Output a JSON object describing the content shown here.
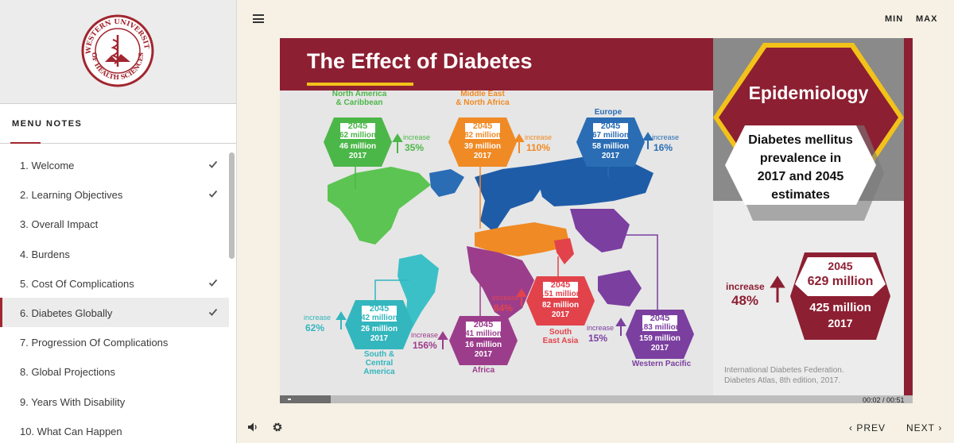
{
  "sidebar": {
    "logo": {
      "top_text": "WESTERN UNIVERSITY",
      "bottom_text": "OF HEALTH SCIENCES",
      "motto": "Educare · Sanare · Conservare"
    },
    "tabs": {
      "menu": "MENU",
      "notes": "NOTES"
    },
    "items": [
      {
        "label": "1. Welcome",
        "done": true
      },
      {
        "label": "2. Learning Objectives",
        "done": true
      },
      {
        "label": "3. Overall Impact",
        "done": false
      },
      {
        "label": "4. Burdens",
        "done": false
      },
      {
        "label": "5. Cost Of Complications",
        "done": true
      },
      {
        "label": "6. Diabetes Globally",
        "done": true,
        "active": true
      },
      {
        "label": "7. Progression Of Complications",
        "done": false
      },
      {
        "label": "8. Global Projections",
        "done": false
      },
      {
        "label": "9. Years With Disability",
        "done": false
      },
      {
        "label": "10. What Can Happen",
        "done": false
      }
    ]
  },
  "topbar": {
    "min": "MIN",
    "max": "MAX"
  },
  "slide": {
    "title": "The Effect of Diabetes",
    "epidemiology": {
      "heading": "Epidemiology",
      "line1": "Diabetes mellitus",
      "line2": "prevalence in",
      "line3": "2017 and 2045",
      "line4": "estimates"
    },
    "global": {
      "increase_word": "increase",
      "pct": "48%",
      "y2045": "2045",
      "v2045": "629 million",
      "v2017": "425 million",
      "y2017": "2017"
    },
    "regions": [
      {
        "name1": "North America",
        "name2": "& Caribbean",
        "name3": "",
        "y2045": "2045",
        "v2045": "62 million",
        "v2017": "46 million",
        "y2017": "2017",
        "inc": "increase",
        "pct": "35%",
        "color": "#4cb749"
      },
      {
        "name1": "Middle East",
        "name2": "& North Africa",
        "name3": "",
        "y2045": "2045",
        "v2045": "82 million",
        "v2017": "39 million",
        "y2017": "2017",
        "inc": "increase",
        "pct": "110%",
        "color": "#f08a24"
      },
      {
        "name1": "Europe",
        "name2": "",
        "name3": "",
        "y2045": "2045",
        "v2045": "67 million",
        "v2017": "58 million",
        "y2017": "2017",
        "inc": "increase",
        "pct": "16%",
        "color": "#2a6db5"
      },
      {
        "name1": "South &",
        "name2": "Central",
        "name3": "America",
        "y2045": "2045",
        "v2045": "42 million",
        "v2017": "26 million",
        "y2017": "2017",
        "inc": "increase",
        "pct": "62%",
        "color": "#33b6bd"
      },
      {
        "name1": "Africa",
        "name2": "",
        "name3": "",
        "y2045": "2045",
        "v2045": "41 million",
        "v2017": "16 million",
        "y2017": "2017",
        "inc": "increase",
        "pct": "156%",
        "color": "#9c3d8c"
      },
      {
        "name1": "South",
        "name2": "East Asia",
        "name3": "",
        "y2045": "2045",
        "v2045": "151 million",
        "v2017": "82 million",
        "y2017": "2017",
        "inc": "increase",
        "pct": "84%",
        "color": "#e2434b"
      },
      {
        "name1": "Western Pacific",
        "name2": "",
        "name3": "",
        "y2045": "2045",
        "v2045": "183 million",
        "v2017": "159 million",
        "y2017": "2017",
        "inc": "increase",
        "pct": "15%",
        "color": "#7b3fa0"
      }
    ],
    "credit_line1": "International Diabetes Federation.",
    "credit_line2": "Diabetes Atlas, 8th edition, 2017."
  },
  "player": {
    "timecode": "00:02 / 00:51",
    "progress": 0.04,
    "prev": "PREV",
    "next": "NEXT"
  },
  "colors": {
    "accent": "#a1262f",
    "maroon": "#8d1f32",
    "yellow": "#f2c21a"
  }
}
